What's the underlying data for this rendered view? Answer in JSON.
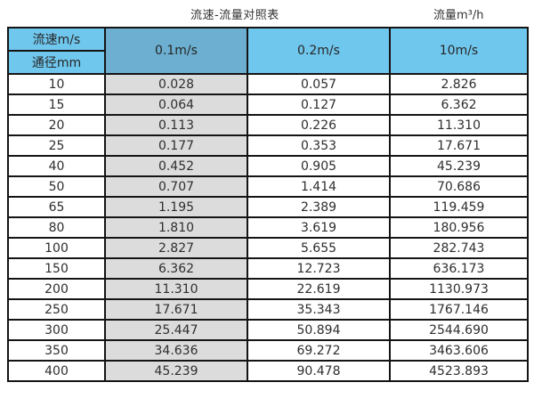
{
  "page": {
    "title": "流速-流量对照表",
    "unit_label": "流量m³/h"
  },
  "table": {
    "header": {
      "velocity_label": "流速m/s",
      "diameter_label": "通径mm",
      "columns": [
        "0.1m/s",
        "0.2m/s",
        "10m/s"
      ]
    },
    "rows": [
      [
        "10",
        "0.028",
        "0.057",
        "2.826"
      ],
      [
        "15",
        "0.064",
        "0.127",
        "6.362"
      ],
      [
        "20",
        "0.113",
        "0.226",
        "11.310"
      ],
      [
        "25",
        "0.177",
        "0.353",
        "17.671"
      ],
      [
        "40",
        "0.452",
        "0.905",
        "45.239"
      ],
      [
        "50",
        "0.707",
        "1.414",
        "70.686"
      ],
      [
        "65",
        "1.195",
        "2.389",
        "119.459"
      ],
      [
        "80",
        "1.810",
        "3.619",
        "180.956"
      ],
      [
        "100",
        "2.827",
        "5.655",
        "282.743"
      ],
      [
        "150",
        "6.362",
        "12.723",
        "636.173"
      ],
      [
        "200",
        "11.310",
        "22.619",
        "1130.973"
      ],
      [
        "250",
        "17.671",
        "35.343",
        "1767.146"
      ],
      [
        "300",
        "25.447",
        "50.894",
        "2544.690"
      ],
      [
        "350",
        "34.636",
        "69.272",
        "3463.606"
      ],
      [
        "400",
        "45.239",
        "90.478",
        "4523.893"
      ]
    ]
  },
  "colors": {
    "header_light_blue": "#70c7ee",
    "header_dark_blue": "#6cafd0",
    "column_gray": "#dcdcdc",
    "border": "#141414",
    "text": "#2e2e2e"
  },
  "chart_data": {
    "type": "table",
    "title": "流速-流量对照表",
    "unit_label": "流量m³/h",
    "row_header_label": "通径mm",
    "column_header_label": "流速m/s",
    "columns": [
      "0.1m/s",
      "0.2m/s",
      "10m/s"
    ],
    "diameters_mm": [
      10,
      15,
      20,
      25,
      40,
      50,
      65,
      80,
      100,
      150,
      200,
      250,
      300,
      350,
      400
    ],
    "series": [
      {
        "name": "0.1m/s",
        "values": [
          0.028,
          0.064,
          0.113,
          0.177,
          0.452,
          0.707,
          1.195,
          1.81,
          2.827,
          6.362,
          11.31,
          17.671,
          25.447,
          34.636,
          45.239
        ]
      },
      {
        "name": "0.2m/s",
        "values": [
          0.057,
          0.127,
          0.226,
          0.353,
          0.905,
          1.414,
          2.389,
          3.619,
          5.655,
          12.723,
          22.619,
          35.343,
          50.894,
          69.272,
          90.478
        ]
      },
      {
        "name": "10m/s",
        "values": [
          2.826,
          6.362,
          11.31,
          17.671,
          45.239,
          70.686,
          119.459,
          180.956,
          282.743,
          636.173,
          1130.973,
          1767.146,
          2544.69,
          3463.606,
          4523.893
        ]
      }
    ]
  }
}
